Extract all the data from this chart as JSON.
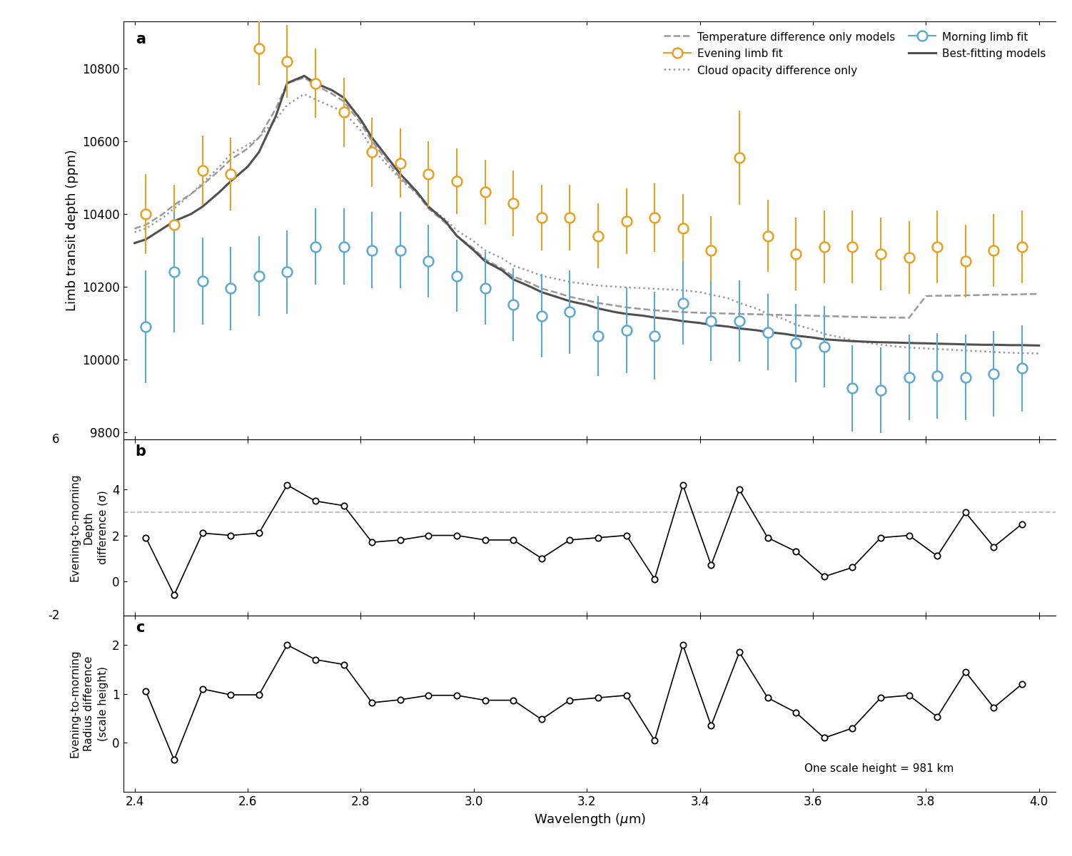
{
  "evening_x": [
    2.42,
    2.47,
    2.52,
    2.57,
    2.62,
    2.67,
    2.72,
    2.77,
    2.82,
    2.87,
    2.92,
    2.97,
    3.02,
    3.07,
    3.12,
    3.17,
    3.22,
    3.27,
    3.32,
    3.37,
    3.42,
    3.47,
    3.52,
    3.57,
    3.62,
    3.67,
    3.72,
    3.77,
    3.82,
    3.87,
    3.92,
    3.97
  ],
  "evening_y": [
    10400,
    10370,
    10520,
    10510,
    10855,
    10820,
    10760,
    10680,
    10570,
    10540,
    10510,
    10490,
    10460,
    10430,
    10390,
    10390,
    10340,
    10380,
    10390,
    10360,
    10300,
    10555,
    10340,
    10290,
    10310,
    10310,
    10290,
    10280,
    10310,
    10270,
    10300,
    10310
  ],
  "evening_yerr": [
    110,
    110,
    95,
    100,
    100,
    100,
    95,
    95,
    95,
    95,
    90,
    90,
    90,
    90,
    90,
    90,
    90,
    90,
    95,
    95,
    95,
    130,
    100,
    100,
    100,
    100,
    100,
    100,
    100,
    100,
    100,
    100
  ],
  "morning_x": [
    2.42,
    2.47,
    2.52,
    2.57,
    2.62,
    2.67,
    2.72,
    2.77,
    2.82,
    2.87,
    2.92,
    2.97,
    3.02,
    3.07,
    3.12,
    3.17,
    3.22,
    3.27,
    3.32,
    3.37,
    3.42,
    3.47,
    3.52,
    3.57,
    3.62,
    3.67,
    3.72,
    3.77,
    3.82,
    3.87,
    3.92,
    3.97
  ],
  "morning_y": [
    10090,
    10240,
    10215,
    10195,
    10230,
    10240,
    10310,
    10310,
    10300,
    10300,
    10270,
    10230,
    10195,
    10150,
    10120,
    10130,
    10065,
    10080,
    10065,
    10155,
    10105,
    10105,
    10075,
    10045,
    10035,
    9920,
    9915,
    9950,
    9955,
    9950,
    9960,
    9975
  ],
  "morning_yerr": [
    155,
    165,
    120,
    115,
    110,
    115,
    105,
    105,
    105,
    105,
    100,
    100,
    100,
    100,
    115,
    115,
    110,
    118,
    120,
    115,
    110,
    112,
    105,
    108,
    112,
    118,
    118,
    118,
    118,
    118,
    118,
    118
  ],
  "best_fit_x": [
    2.4,
    2.42,
    2.45,
    2.47,
    2.5,
    2.52,
    2.55,
    2.57,
    2.6,
    2.62,
    2.65,
    2.67,
    2.7,
    2.72,
    2.75,
    2.77,
    2.8,
    2.82,
    2.85,
    2.87,
    2.9,
    2.92,
    2.95,
    2.97,
    3.0,
    3.02,
    3.05,
    3.07,
    3.1,
    3.12,
    3.15,
    3.17,
    3.2,
    3.22,
    3.25,
    3.27,
    3.3,
    3.32,
    3.35,
    3.37,
    3.4,
    3.42,
    3.45,
    3.47,
    3.5,
    3.52,
    3.55,
    3.57,
    3.6,
    3.62,
    3.65,
    3.67,
    3.7,
    3.72,
    3.75,
    3.77,
    3.8,
    3.82,
    3.85,
    3.87,
    3.9,
    3.92,
    3.95,
    3.97,
    4.0
  ],
  "best_fit_y": [
    10320,
    10330,
    10360,
    10380,
    10400,
    10420,
    10460,
    10490,
    10530,
    10570,
    10670,
    10760,
    10780,
    10760,
    10740,
    10720,
    10660,
    10610,
    10550,
    10510,
    10460,
    10420,
    10380,
    10340,
    10300,
    10270,
    10245,
    10220,
    10200,
    10185,
    10170,
    10160,
    10150,
    10140,
    10130,
    10125,
    10120,
    10115,
    10110,
    10105,
    10100,
    10095,
    10090,
    10085,
    10080,
    10075,
    10070,
    10065,
    10060,
    10055,
    10052,
    10050,
    10048,
    10047,
    10046,
    10045,
    10044,
    10043,
    10042,
    10041,
    10040,
    10040,
    10039,
    10039,
    10038
  ],
  "temp_diff_x": [
    2.4,
    2.42,
    2.45,
    2.47,
    2.5,
    2.52,
    2.55,
    2.57,
    2.6,
    2.62,
    2.65,
    2.67,
    2.7,
    2.72,
    2.75,
    2.77,
    2.8,
    2.82,
    2.85,
    2.87,
    2.9,
    2.92,
    2.95,
    2.97,
    3.0,
    3.02,
    3.05,
    3.07,
    3.1,
    3.12,
    3.15,
    3.17,
    3.2,
    3.22,
    3.25,
    3.27,
    3.3,
    3.32,
    3.35,
    3.37,
    3.4,
    3.42,
    3.45,
    3.47,
    3.5,
    3.52,
    3.55,
    3.57,
    3.6,
    3.62,
    3.65,
    3.67,
    3.7,
    3.72,
    3.75,
    3.77,
    3.8,
    3.82,
    3.85,
    3.87,
    3.9,
    3.92,
    3.95,
    3.97,
    4.0
  ],
  "temp_diff_y": [
    10360,
    10370,
    10400,
    10425,
    10455,
    10480,
    10520,
    10550,
    10580,
    10610,
    10690,
    10760,
    10775,
    10755,
    10730,
    10710,
    10650,
    10600,
    10540,
    10500,
    10455,
    10415,
    10375,
    10340,
    10305,
    10275,
    10250,
    10228,
    10210,
    10195,
    10182,
    10172,
    10162,
    10155,
    10148,
    10143,
    10138,
    10135,
    10132,
    10130,
    10128,
    10127,
    10126,
    10125,
    10124,
    10123,
    10122,
    10121,
    10120,
    10119,
    10118,
    10117,
    10116,
    10115,
    10115,
    10114,
    10174,
    10175,
    10175,
    10176,
    10177,
    10178,
    10178,
    10179,
    10180
  ],
  "cloud_diff_x": [
    2.4,
    2.42,
    2.45,
    2.47,
    2.5,
    2.52,
    2.55,
    2.57,
    2.6,
    2.62,
    2.65,
    2.67,
    2.7,
    2.72,
    2.75,
    2.77,
    2.8,
    2.82,
    2.85,
    2.87,
    2.9,
    2.92,
    2.95,
    2.97,
    3.0,
    3.02,
    3.05,
    3.07,
    3.1,
    3.12,
    3.15,
    3.17,
    3.2,
    3.22,
    3.25,
    3.27,
    3.3,
    3.32,
    3.35,
    3.37,
    3.4,
    3.42,
    3.45,
    3.47,
    3.5,
    3.52,
    3.55,
    3.57,
    3.6,
    3.62,
    3.65,
    3.67,
    3.7,
    3.72,
    3.75,
    3.77,
    3.8,
    3.82,
    3.85,
    3.87,
    3.9,
    3.92,
    3.95,
    3.97,
    4.0
  ],
  "cloud_diff_y": [
    10350,
    10360,
    10390,
    10415,
    10455,
    10485,
    10530,
    10565,
    10590,
    10610,
    10660,
    10700,
    10730,
    10715,
    10695,
    10680,
    10630,
    10580,
    10530,
    10495,
    10455,
    10420,
    10385,
    10355,
    10325,
    10300,
    10278,
    10258,
    10242,
    10230,
    10220,
    10213,
    10207,
    10203,
    10200,
    10198,
    10196,
    10194,
    10192,
    10190,
    10185,
    10178,
    10168,
    10155,
    10140,
    10125,
    10110,
    10095,
    10082,
    10070,
    10060,
    10052,
    10045,
    10040,
    10035,
    10032,
    10030,
    10028,
    10026,
    10024,
    10022,
    10020,
    10018,
    10017,
    10016
  ],
  "panel_b_x": [
    2.42,
    2.47,
    2.52,
    2.57,
    2.62,
    2.67,
    2.72,
    2.77,
    2.82,
    2.87,
    2.92,
    2.97,
    3.02,
    3.07,
    3.12,
    3.17,
    3.22,
    3.27,
    3.32,
    3.37,
    3.42,
    3.47,
    3.52,
    3.57,
    3.62,
    3.67,
    3.72,
    3.77,
    3.82,
    3.87,
    3.92,
    3.97
  ],
  "panel_b_y": [
    1.9,
    -0.6,
    2.1,
    2.0,
    2.1,
    4.2,
    3.5,
    3.3,
    1.7,
    1.8,
    2.0,
    2.0,
    1.8,
    1.8,
    1.0,
    1.8,
    1.9,
    2.0,
    0.1,
    4.2,
    0.7,
    4.0,
    1.9,
    1.3,
    0.2,
    0.6,
    1.9,
    2.0,
    1.1,
    3.0,
    1.5,
    2.5
  ],
  "panel_c_x": [
    2.42,
    2.47,
    2.52,
    2.57,
    2.62,
    2.67,
    2.72,
    2.77,
    2.82,
    2.87,
    2.92,
    2.97,
    3.02,
    3.07,
    3.12,
    3.17,
    3.22,
    3.27,
    3.32,
    3.37,
    3.42,
    3.47,
    3.52,
    3.57,
    3.62,
    3.67,
    3.72,
    3.77,
    3.82,
    3.87,
    3.92,
    3.97
  ],
  "panel_c_y": [
    1.05,
    -0.35,
    1.1,
    0.98,
    0.98,
    2.0,
    1.7,
    1.6,
    0.82,
    0.88,
    0.97,
    0.97,
    0.87,
    0.87,
    0.48,
    0.87,
    0.92,
    0.97,
    0.05,
    2.0,
    0.35,
    1.85,
    0.92,
    0.62,
    0.1,
    0.3,
    0.92,
    0.97,
    0.53,
    1.45,
    0.72,
    1.2
  ],
  "evening_color": "#E8A020",
  "morning_color": "#5BA8D4",
  "model_dark_gray": "#505050",
  "model_light_gray": "#999999",
  "sigma_line": 3.0,
  "ylim_a": [
    9780,
    10930
  ],
  "yticks_a": [
    9800,
    10000,
    10200,
    10400,
    10600,
    10800
  ],
  "xlim": [
    2.38,
    4.03
  ],
  "xticks": [
    2.4,
    2.6,
    2.8,
    3.0,
    3.2,
    3.4,
    3.6,
    3.8,
    4.0
  ],
  "ylim_b": [
    -1.5,
    6.2
  ],
  "yticks_b": [
    0,
    2,
    4
  ],
  "ylim_c": [
    -1.0,
    2.6
  ],
  "yticks_c": [
    0,
    1,
    2
  ],
  "ylabel_b": "Evening-to-morning\nDepth\ndifference (σ)",
  "ylabel_c": "Evening-to-morning\nRadius difference\n(scale height)"
}
